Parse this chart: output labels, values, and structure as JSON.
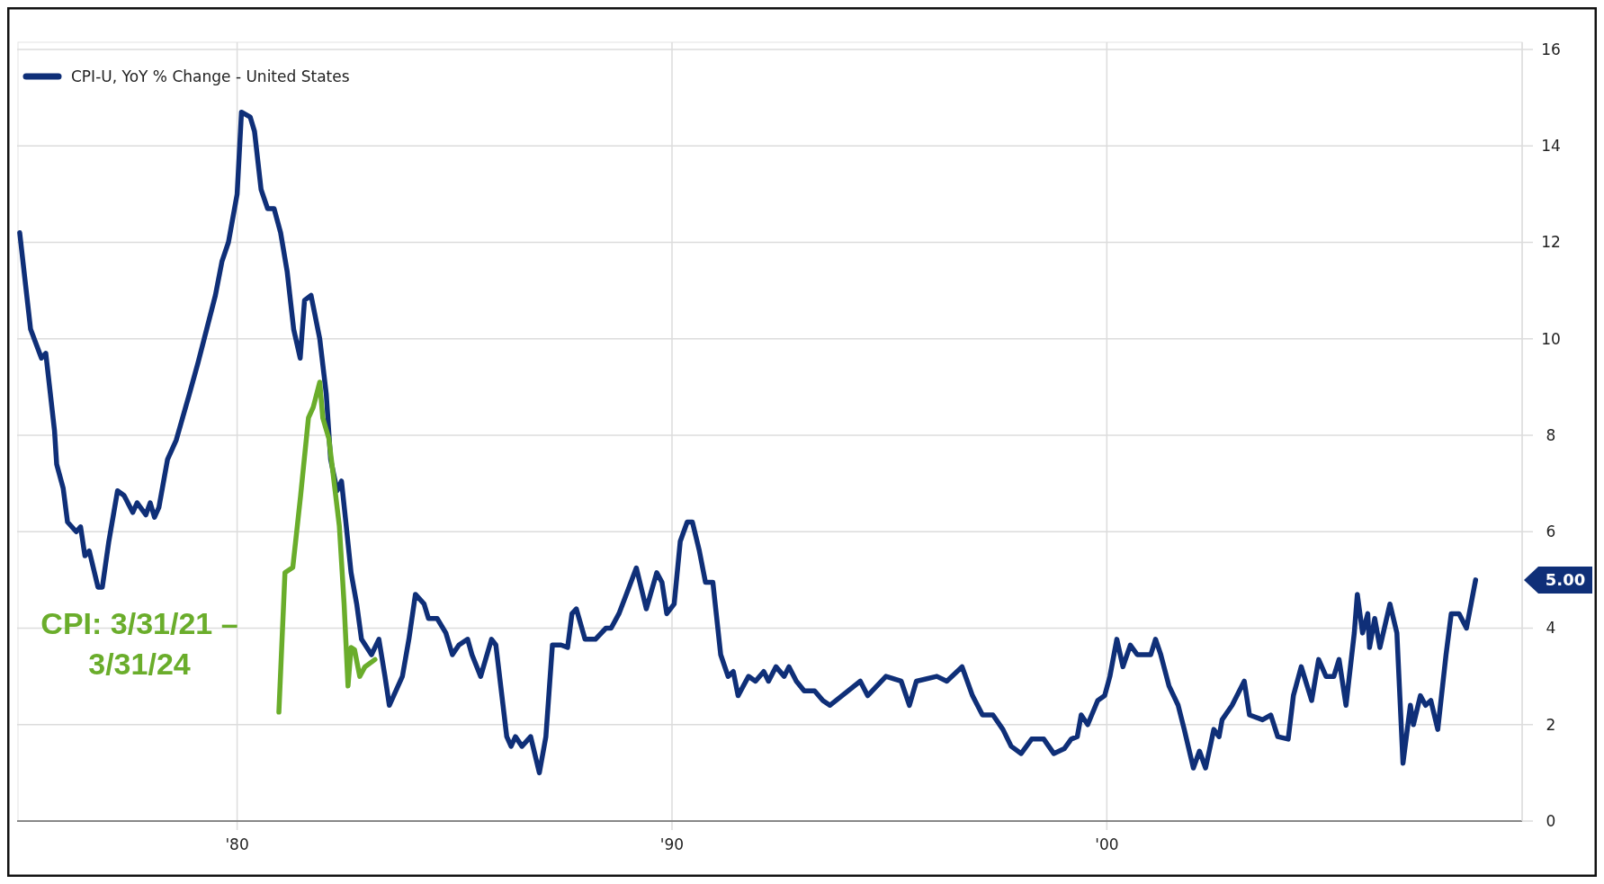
{
  "chart_data": {
    "type": "line",
    "xlim": [
      1974.94,
      2009.55
    ],
    "ylim": [
      0,
      16
    ],
    "xticks": [
      {
        "value": 1980,
        "label": "'80"
      },
      {
        "value": 1990,
        "label": "'90"
      },
      {
        "value": 2000,
        "label": "'00"
      }
    ],
    "yticks": [
      0,
      2,
      4,
      6,
      8,
      10,
      12,
      14,
      16
    ],
    "grid": true,
    "legend": "top left",
    "line_style": "solid",
    "marker": "none",
    "annotations": [
      "5.00"
    ],
    "series": [
      {
        "name": "CPI-U, YoY % Change  - United States",
        "color": "#0f2f78",
        "x": [
          1975.0,
          1975.2,
          1975.25,
          1975.5,
          1975.6,
          1975.8,
          1975.85,
          1976.0,
          1976.1,
          1976.3,
          1976.4,
          1976.5,
          1976.6,
          1976.8,
          1976.9,
          1977.05,
          1977.25,
          1977.4,
          1977.6,
          1977.7,
          1977.9,
          1978.0,
          1978.1,
          1978.2,
          1978.4,
          1978.6,
          1978.9,
          1979.1,
          1979.3,
          1979.5,
          1979.65,
          1979.8,
          1980.0,
          1980.1,
          1980.3,
          1980.4,
          1980.55,
          1980.7,
          1980.85,
          1981.0,
          1981.15,
          1981.3,
          1981.45,
          1981.55,
          1981.7,
          1981.9,
          1982.05,
          1982.15,
          1982.3,
          1982.4,
          1982.5,
          1982.62,
          1982.75,
          1982.86,
          1983.09,
          1983.26,
          1983.4,
          1983.5,
          1983.6,
          1983.8,
          1983.95,
          1984.1,
          1984.3,
          1984.4,
          1984.6,
          1984.8,
          1984.95,
          1985.1,
          1985.3,
          1985.4,
          1985.6,
          1985.85,
          1985.95,
          1986.2,
          1986.3,
          1986.4,
          1986.55,
          1986.75,
          1986.95,
          1987.1,
          1987.25,
          1987.45,
          1987.6,
          1987.7,
          1987.8,
          1988.0,
          1988.24,
          1988.48,
          1988.6,
          1988.78,
          1988.95,
          1989.18,
          1989.41,
          1989.65,
          1989.77,
          1989.88,
          1990.05,
          1990.19,
          1990.35,
          1990.47,
          1990.63,
          1990.77,
          1990.94,
          1991.12,
          1991.29,
          1991.41,
          1991.52,
          1991.76,
          1991.92,
          1992.11,
          1992.22,
          1992.39,
          1992.58,
          1992.69,
          1992.86,
          1993.04,
          1993.28,
          1993.47,
          1993.63,
          1994.33,
          1994.5,
          1994.92,
          1995.27,
          1995.46,
          1995.62,
          1996.09,
          1996.32,
          1996.67,
          1996.91,
          1997.14,
          1997.38,
          1997.61,
          1997.8,
          1998.03,
          1998.27,
          1998.55,
          1998.78,
          1999.02,
          1999.18,
          1999.32,
          1999.41,
          1999.56,
          1999.79,
          1999.95,
          2000.07,
          2000.23,
          2000.37,
          2000.54,
          2000.7,
          2001.01,
          2001.12,
          2001.24,
          2001.43,
          2001.64,
          2001.78,
          2001.99,
          2002.13,
          2002.27,
          2002.46,
          2002.58,
          2002.65,
          2002.88,
          2003.16,
          2003.28,
          2003.58,
          2003.77,
          2003.93,
          2004.17,
          2004.29,
          2004.47,
          2004.71,
          2004.87,
          2005.04,
          2005.22,
          2005.34,
          2005.5,
          2005.69,
          2005.76,
          2005.88,
          2006.0,
          2006.04,
          2006.16,
          2006.28,
          2006.51,
          2006.67,
          2006.81,
          2006.98,
          2007.05,
          2007.21,
          2007.33,
          2007.45,
          2007.61,
          2007.8,
          2007.92,
          2008.1,
          2008.27,
          2008.48
        ],
        "values": [
          12.2,
          10.6,
          10.2,
          9.6,
          9.7,
          8.1,
          7.4,
          6.9,
          6.2,
          6.0,
          6.1,
          5.5,
          5.6,
          4.85,
          4.85,
          5.8,
          6.85,
          6.75,
          6.4,
          6.6,
          6.35,
          6.6,
          6.3,
          6.5,
          7.5,
          7.9,
          8.85,
          9.5,
          10.2,
          10.9,
          11.6,
          12.0,
          13.0,
          14.7,
          14.6,
          14.3,
          13.1,
          12.7,
          12.7,
          12.2,
          11.4,
          10.2,
          9.6,
          10.8,
          10.9,
          10.0,
          8.85,
          7.5,
          6.85,
          7.05,
          6.2,
          5.15,
          4.5,
          3.77,
          3.45,
          3.77,
          3.0,
          2.4,
          2.6,
          3.0,
          3.77,
          4.7,
          4.5,
          4.2,
          4.2,
          3.9,
          3.45,
          3.65,
          3.77,
          3.45,
          3.0,
          3.77,
          3.65,
          1.75,
          1.55,
          1.75,
          1.55,
          1.75,
          1.0,
          1.75,
          3.65,
          3.65,
          3.6,
          4.3,
          4.4,
          3.77,
          3.77,
          4.0,
          4.0,
          4.3,
          4.7,
          5.25,
          4.4,
          5.15,
          4.95,
          4.3,
          4.5,
          5.8,
          6.2,
          6.2,
          5.6,
          4.95,
          4.95,
          3.45,
          3.0,
          3.1,
          2.6,
          3.0,
          2.9,
          3.1,
          2.9,
          3.2,
          3.0,
          3.2,
          2.9,
          2.7,
          2.7,
          2.5,
          2.4,
          2.9,
          2.6,
          3.0,
          2.9,
          2.4,
          2.9,
          3.0,
          2.9,
          3.2,
          2.6,
          2.2,
          2.2,
          1.9,
          1.55,
          1.4,
          1.7,
          1.7,
          1.4,
          1.5,
          1.7,
          1.75,
          2.2,
          2.0,
          2.5,
          2.6,
          3.0,
          3.77,
          3.2,
          3.65,
          3.45,
          3.45,
          3.77,
          3.45,
          2.8,
          2.4,
          1.9,
          1.1,
          1.45,
          1.1,
          1.9,
          1.75,
          2.1,
          2.4,
          2.9,
          2.2,
          2.1,
          2.2,
          1.75,
          1.7,
          2.6,
          3.2,
          2.5,
          3.35,
          3.0,
          3.0,
          3.35,
          2.4,
          3.9,
          4.7,
          3.9,
          4.3,
          3.6,
          4.2,
          3.6,
          4.5,
          3.9,
          1.2,
          2.4,
          2.0,
          2.6,
          2.4,
          2.5,
          1.9,
          3.45,
          4.3,
          4.3,
          4.0,
          5.0
        ]
      },
      {
        "name": "CPI: 3/31/21 – 3/31/24",
        "color": "#6aad2b",
        "x": [
          1980.96,
          1981.1,
          1981.28,
          1981.46,
          1981.64,
          1981.75,
          1981.9,
          1981.97,
          1982.11,
          1982.35,
          1982.46,
          1982.55,
          1982.62,
          1982.7,
          1982.82,
          1982.94,
          1983.17
        ],
        "values": [
          2.26,
          5.15,
          5.26,
          6.75,
          8.36,
          8.58,
          9.1,
          8.36,
          7.93,
          6.12,
          4.5,
          2.8,
          3.6,
          3.55,
          3.0,
          3.2,
          3.35
        ]
      }
    ]
  }
}
